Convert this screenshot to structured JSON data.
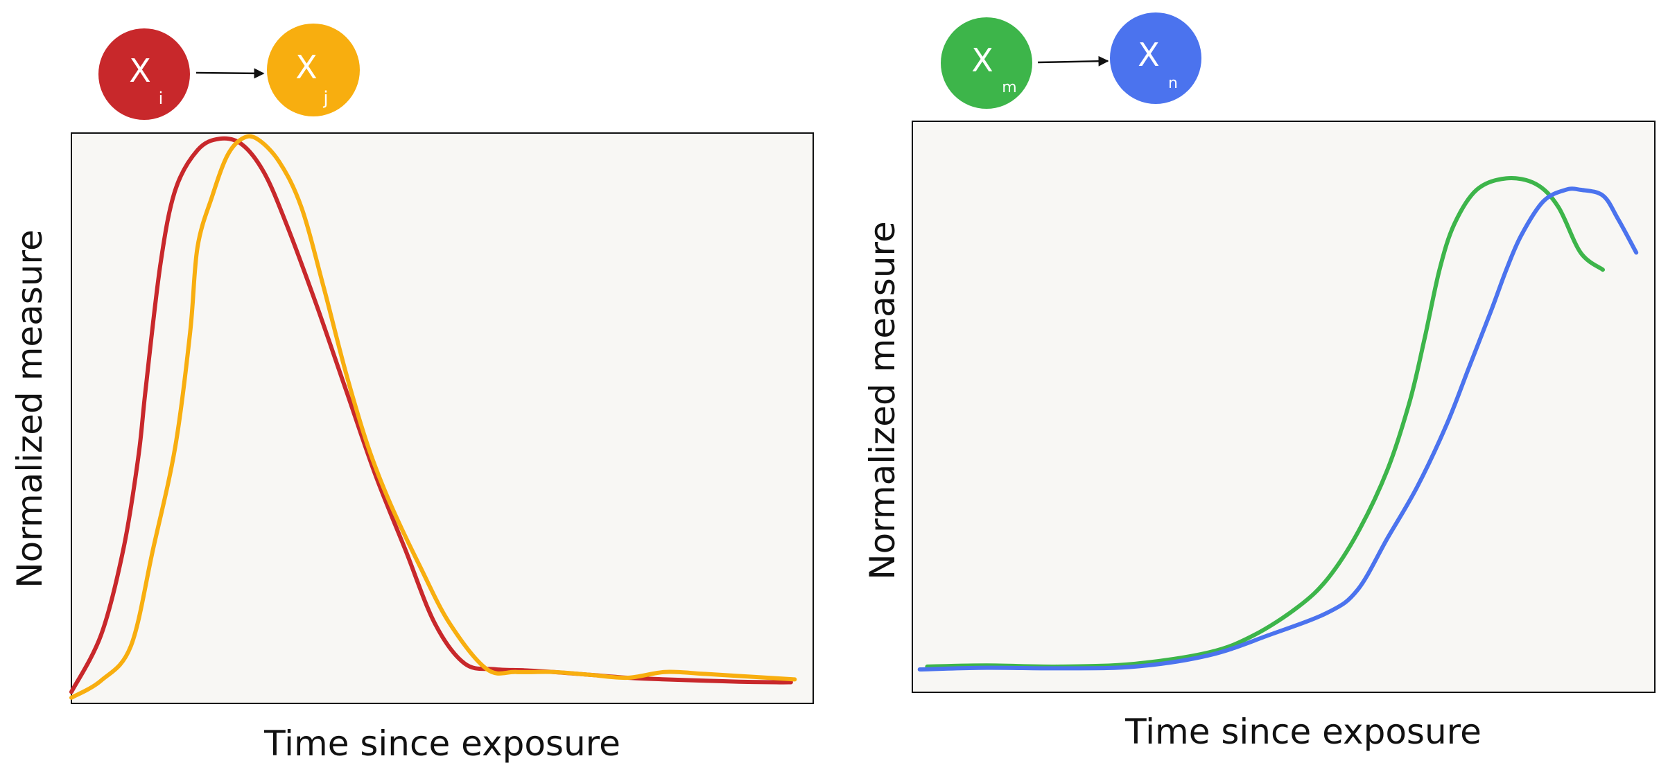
{
  "colors": {
    "red": "#C8282B",
    "yellow": "#F8AE0F",
    "green": "#3DB54A",
    "blue": "#4B73EE",
    "panel": "#F8F7F4",
    "axis": "#111111"
  },
  "chart_data": [
    {
      "type": "line",
      "xlabel": "Time since exposure",
      "ylabel": "Normalized measure",
      "xlim": [
        0,
        1
      ],
      "ylim": [
        0,
        1
      ],
      "grid": false,
      "nodes": [
        {
          "var": "X",
          "sub": "i",
          "color": "#C8282B"
        },
        {
          "var": "X",
          "sub": "j",
          "color": "#F8AE0F"
        }
      ],
      "series": [
        {
          "color": "#C8282B",
          "x": [
            0.0,
            0.04,
            0.07,
            0.09,
            0.1,
            0.12,
            0.14,
            0.17,
            0.2,
            0.23,
            0.26,
            0.29,
            0.33,
            0.37,
            0.41,
            0.45,
            0.49,
            0.53,
            0.57,
            0.61,
            0.65,
            0.7,
            0.75,
            0.8,
            0.85,
            0.9,
            0.95,
            0.97
          ],
          "y": [
            0.02,
            0.12,
            0.27,
            0.43,
            0.55,
            0.77,
            0.9,
            0.97,
            0.99,
            0.98,
            0.93,
            0.84,
            0.7,
            0.55,
            0.4,
            0.27,
            0.14,
            0.07,
            0.06,
            0.058,
            0.055,
            0.05,
            0.045,
            0.042,
            0.04,
            0.038,
            0.037,
            0.037
          ]
        },
        {
          "color": "#F8AE0F",
          "x": [
            0.0,
            0.04,
            0.08,
            0.11,
            0.14,
            0.16,
            0.17,
            0.19,
            0.21,
            0.23,
            0.25,
            0.28,
            0.31,
            0.34,
            0.37,
            0.4,
            0.43,
            0.47,
            0.51,
            0.56,
            0.6,
            0.65,
            0.7,
            0.75,
            0.8,
            0.85,
            0.9,
            0.95,
            0.975
          ],
          "y": [
            0.01,
            0.04,
            0.1,
            0.27,
            0.45,
            0.65,
            0.8,
            0.89,
            0.96,
            0.99,
            0.99,
            0.95,
            0.87,
            0.73,
            0.58,
            0.45,
            0.35,
            0.24,
            0.14,
            0.06,
            0.055,
            0.055,
            0.05,
            0.045,
            0.055,
            0.052,
            0.048,
            0.044,
            0.042
          ]
        }
      ]
    },
    {
      "type": "line",
      "xlabel": "Time since exposure",
      "ylabel": "Normalized measure",
      "xlim": [
        0,
        1
      ],
      "ylim": [
        0,
        1
      ],
      "grid": false,
      "nodes": [
        {
          "var": "X",
          "sub": "m",
          "color": "#3DB54A"
        },
        {
          "var": "X",
          "sub": "n",
          "color": "#4B73EE"
        }
      ],
      "series": [
        {
          "color": "#3DB54A",
          "x": [
            0.02,
            0.1,
            0.2,
            0.3,
            0.4,
            0.46,
            0.52,
            0.56,
            0.6,
            0.64,
            0.67,
            0.69,
            0.71,
            0.73,
            0.76,
            0.8,
            0.84,
            0.87,
            0.9,
            0.93
          ],
          "y": [
            0.045,
            0.047,
            0.045,
            0.05,
            0.07,
            0.1,
            0.15,
            0.2,
            0.28,
            0.39,
            0.51,
            0.62,
            0.74,
            0.82,
            0.88,
            0.9,
            0.89,
            0.85,
            0.77,
            0.74
          ]
        },
        {
          "color": "#4B73EE",
          "x": [
            0.01,
            0.1,
            0.2,
            0.3,
            0.4,
            0.48,
            0.56,
            0.6,
            0.64,
            0.68,
            0.72,
            0.75,
            0.78,
            0.8,
            0.82,
            0.85,
            0.88,
            0.9,
            0.93,
            0.95,
            0.975
          ],
          "y": [
            0.04,
            0.043,
            0.042,
            0.045,
            0.065,
            0.1,
            0.14,
            0.18,
            0.27,
            0.36,
            0.47,
            0.57,
            0.67,
            0.74,
            0.8,
            0.86,
            0.88,
            0.88,
            0.87,
            0.83,
            0.77
          ]
        }
      ]
    }
  ]
}
